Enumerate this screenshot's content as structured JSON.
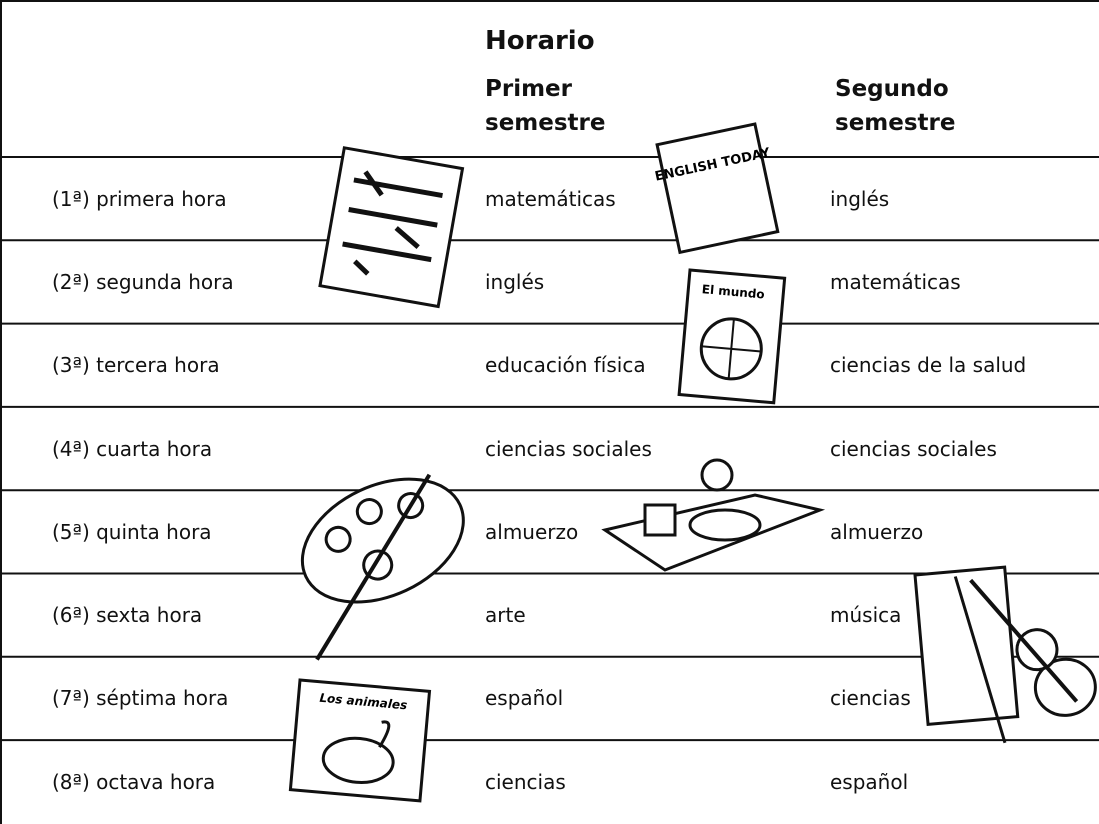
{
  "header": {
    "title": "Horario",
    "columns": [
      "Primer semestre",
      "Segundo semestre"
    ]
  },
  "rows": [
    [
      "(1ª) primera hora",
      "matemáticas",
      "inglés"
    ],
    [
      "(2ª) segunda hora",
      "inglés",
      "matemáticas"
    ],
    [
      "(3ª) tercera hora",
      "educación física",
      "ciencias de la salud"
    ],
    [
      "(4ª) cuarta hora",
      "ciencias sociales",
      "ciencias sociales"
    ],
    [
      "(5ª) quinta hora",
      "almuerzo",
      "almuerzo"
    ],
    [
      "(6ª) sexta hora",
      "arte",
      "música"
    ],
    [
      "(7ª) séptima hora",
      "español",
      "ciencias"
    ],
    [
      "(8ª) octava hora",
      "ciencias",
      "español"
    ]
  ],
  "illustrations": {
    "english_book": "ENGLISH TODAY",
    "world_book": "El mundo",
    "animals_book": "Los animales"
  }
}
